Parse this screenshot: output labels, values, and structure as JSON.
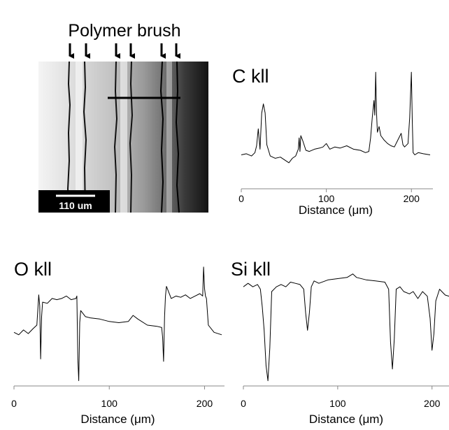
{
  "micrograph": {
    "title": "Polymer brush",
    "scale_bar_label": "110 um",
    "arrow_count": 6
  },
  "chart_data": [
    {
      "type": "line",
      "title": "C kll",
      "xlabel": "Distance (μm)",
      "xlim": [
        0,
        222
      ],
      "ylim": [
        0,
        1
      ],
      "xticks": [
        0,
        100,
        200
      ],
      "color": "#000000",
      "series": [
        {
          "x": [
            0,
            6,
            12,
            16,
            18,
            20,
            22,
            24,
            26,
            28,
            30,
            34,
            40,
            46,
            52,
            56,
            60,
            64,
            67,
            68,
            69,
            70,
            72,
            76,
            80,
            86,
            92,
            96,
            100,
            104,
            110,
            116,
            124,
            132,
            140,
            146,
            150,
            152,
            154,
            156,
            157,
            158,
            159,
            160,
            162,
            164,
            168,
            172,
            176,
            180,
            184,
            188,
            190,
            192,
            196,
            198,
            200,
            201,
            202,
            204,
            208,
            214,
            222
          ],
          "y": [
            0.25,
            0.26,
            0.24,
            0.27,
            0.33,
            0.48,
            0.3,
            0.62,
            0.7,
            0.62,
            0.34,
            0.24,
            0.22,
            0.23,
            0.2,
            0.18,
            0.22,
            0.24,
            0.3,
            0.4,
            0.28,
            0.42,
            0.38,
            0.29,
            0.28,
            0.3,
            0.31,
            0.32,
            0.35,
            0.3,
            0.32,
            0.31,
            0.33,
            0.3,
            0.29,
            0.27,
            0.28,
            0.4,
            0.58,
            0.73,
            0.6,
            0.98,
            0.62,
            0.45,
            0.5,
            0.42,
            0.38,
            0.35,
            0.33,
            0.32,
            0.38,
            0.44,
            0.34,
            0.32,
            0.35,
            0.58,
            0.98,
            0.55,
            0.27,
            0.25,
            0.27,
            0.26,
            0.25
          ]
        }
      ]
    },
    {
      "type": "line",
      "title": "O kll",
      "xlabel": "Distance (μm)",
      "xlim": [
        0,
        218
      ],
      "ylim": [
        0,
        1
      ],
      "xticks": [
        0,
        100,
        200
      ],
      "color": "#000000",
      "series": [
        {
          "x": [
            0,
            5,
            10,
            15,
            20,
            24,
            26,
            27,
            28,
            29,
            30,
            35,
            40,
            45,
            50,
            55,
            60,
            65,
            66,
            67,
            68,
            69,
            70,
            75,
            80,
            90,
            100,
            110,
            120,
            125,
            130,
            140,
            150,
            155,
            156,
            157,
            158,
            159,
            160,
            165,
            170,
            175,
            180,
            185,
            190,
            195,
            198,
            199,
            200,
            201,
            202,
            204,
            210,
            218
          ],
          "y": [
            0.42,
            0.4,
            0.44,
            0.41,
            0.45,
            0.48,
            0.73,
            0.64,
            0.2,
            0.55,
            0.67,
            0.66,
            0.7,
            0.69,
            0.7,
            0.72,
            0.69,
            0.7,
            0.72,
            0.2,
            0.02,
            0.5,
            0.6,
            0.55,
            0.54,
            0.53,
            0.51,
            0.5,
            0.51,
            0.56,
            0.53,
            0.48,
            0.47,
            0.46,
            0.38,
            0.18,
            0.55,
            0.72,
            0.8,
            0.7,
            0.72,
            0.71,
            0.73,
            0.7,
            0.72,
            0.74,
            0.72,
            0.96,
            0.78,
            0.72,
            0.7,
            0.48,
            0.42,
            0.4
          ]
        }
      ]
    },
    {
      "type": "line",
      "title": "Si kll",
      "xlabel": "Distance (μm)",
      "xlim": [
        0,
        218
      ],
      "ylim": [
        0,
        1
      ],
      "xticks": [
        0,
        100,
        200
      ],
      "color": "#000000",
      "series": [
        {
          "x": [
            0,
            5,
            10,
            15,
            18,
            20,
            22,
            24,
            26,
            28,
            30,
            35,
            40,
            45,
            50,
            55,
            60,
            64,
            66,
            68,
            70,
            72,
            75,
            80,
            90,
            100,
            110,
            116,
            120,
            130,
            140,
            150,
            154,
            156,
            158,
            160,
            162,
            166,
            170,
            176,
            180,
            185,
            190,
            195,
            198,
            200,
            202,
            204,
            208,
            214,
            218
          ],
          "y": [
            0.82,
            0.85,
            0.82,
            0.84,
            0.8,
            0.65,
            0.45,
            0.15,
            0.02,
            0.3,
            0.78,
            0.82,
            0.84,
            0.82,
            0.86,
            0.85,
            0.84,
            0.8,
            0.6,
            0.45,
            0.6,
            0.82,
            0.87,
            0.85,
            0.88,
            0.89,
            0.9,
            0.93,
            0.9,
            0.88,
            0.87,
            0.86,
            0.8,
            0.35,
            0.12,
            0.38,
            0.8,
            0.82,
            0.78,
            0.76,
            0.78,
            0.72,
            0.78,
            0.74,
            0.55,
            0.28,
            0.42,
            0.7,
            0.8,
            0.75,
            0.74
          ]
        }
      ]
    }
  ]
}
